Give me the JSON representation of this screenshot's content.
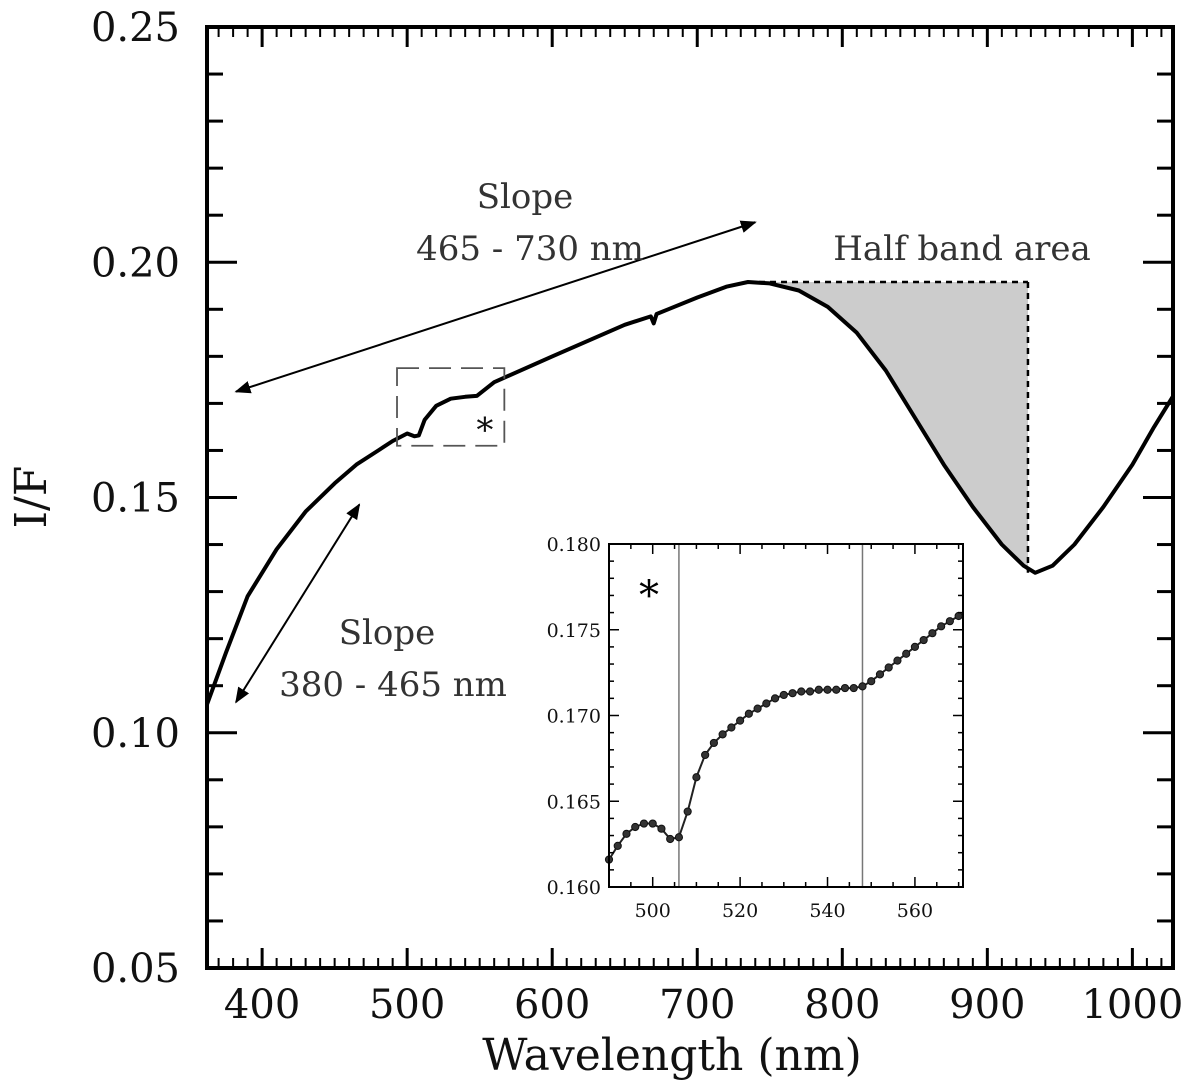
{
  "chart_data": {
    "type": "line",
    "xlabel": "Wavelength (nm)",
    "ylabel": "I/F",
    "xlim": [
      362,
      1028
    ],
    "ylim": [
      0.05,
      0.25
    ],
    "x_ticks": [
      "400",
      "500",
      "600",
      "700",
      "800",
      "900",
      "1000"
    ],
    "y_ticks": [
      "0.05",
      "0.10",
      "0.15",
      "0.20",
      "0.25"
    ],
    "series": [
      {
        "name": "spectrum",
        "x": [
          362,
          375,
          390,
          410,
          430,
          450,
          465,
          480,
          490,
          500,
          505,
          508,
          512,
          520,
          530,
          540,
          548,
          560,
          600,
          650,
          668,
          670,
          672,
          680,
          700,
          720,
          735,
          750,
          770,
          790,
          810,
          830,
          850,
          870,
          890,
          910,
          925,
          933,
          945,
          960,
          980,
          1000,
          1015,
          1028
        ],
        "values": [
          0.106,
          0.117,
          0.129,
          0.139,
          0.147,
          0.153,
          0.157,
          0.16,
          0.162,
          0.1636,
          0.163,
          0.1632,
          0.1665,
          0.1695,
          0.171,
          0.1714,
          0.1716,
          0.1745,
          0.18,
          0.1867,
          0.1885,
          0.187,
          0.189,
          0.19,
          0.1925,
          0.1948,
          0.1958,
          0.1955,
          0.194,
          0.1905,
          0.185,
          0.177,
          0.167,
          0.157,
          0.148,
          0.14,
          0.1355,
          0.134,
          0.1355,
          0.14,
          0.148,
          0.157,
          0.165,
          0.1715
        ]
      }
    ],
    "annotations": {
      "slope_long": {
        "line1": "Slope",
        "line2": "465 - 730 nm",
        "from_x": 382,
        "from_y": 0.1725,
        "to_x": 740,
        "to_y": 0.2085
      },
      "slope_short": {
        "line1": "Slope",
        "line2": "380 - 465 nm",
        "from_x": 382,
        "from_y": 0.1065,
        "to_x": 467,
        "to_y": 0.1485
      },
      "band": {
        "label": "Half band area",
        "x_start": 735,
        "x_end": 928,
        "y_top": 0.1958,
        "y_min": 0.134
      },
      "zoom_box": {
        "x0": 493,
        "x1": 567,
        "y0": 0.161,
        "y1": 0.1775,
        "marker": "*"
      }
    },
    "inset": {
      "marker": "*",
      "xlim": [
        490,
        571
      ],
      "ylim": [
        0.16,
        0.18
      ],
      "x_ticks": [
        "500",
        "520",
        "540",
        "560"
      ],
      "y_ticks": [
        "0.160",
        "0.165",
        "0.170",
        "0.175",
        "0.180"
      ],
      "vlines": [
        506,
        548
      ],
      "x": [
        490,
        492,
        494,
        496,
        498,
        500,
        502,
        504,
        506,
        508,
        510,
        512,
        514,
        516,
        518,
        520,
        522,
        524,
        526,
        528,
        530,
        532,
        534,
        536,
        538,
        540,
        542,
        544,
        546,
        548,
        550,
        552,
        554,
        556,
        558,
        560,
        562,
        564,
        566,
        568,
        570
      ],
      "values": [
        0.1616,
        0.1624,
        0.1631,
        0.1635,
        0.1637,
        0.1637,
        0.1634,
        0.1628,
        0.1629,
        0.1644,
        0.1664,
        0.1677,
        0.1684,
        0.1689,
        0.1693,
        0.1697,
        0.1701,
        0.1704,
        0.1707,
        0.171,
        0.1712,
        0.1713,
        0.1714,
        0.1714,
        0.1715,
        0.1715,
        0.1715,
        0.1716,
        0.1716,
        0.1717,
        0.172,
        0.1724,
        0.1728,
        0.1732,
        0.1736,
        0.174,
        0.1744,
        0.1748,
        0.1752,
        0.1755,
        0.1758
      ]
    }
  }
}
